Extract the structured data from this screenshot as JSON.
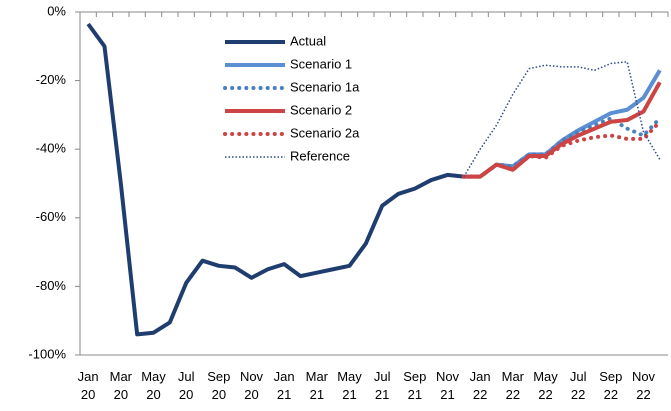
{
  "chart_data": {
    "type": "line",
    "categories": [
      "Jan 20",
      null,
      "Mar 20",
      null,
      "May 20",
      null,
      "Jul 20",
      null,
      "Sep 20",
      null,
      "Nov 20",
      null,
      "Jan 21",
      null,
      "Mar 21",
      null,
      "May 21",
      null,
      "Jul 21",
      null,
      "Sep 21",
      null,
      "Nov 21",
      null,
      "Jan 22",
      null,
      "Mar 22",
      null,
      "May 22",
      null,
      "Jul 22",
      null,
      "Sep 22",
      null,
      "Nov 22",
      null
    ],
    "series": [
      {
        "name": "Actual",
        "color": "#1f3d6e",
        "dash": "solid",
        "values": [
          -3.5,
          -10,
          -50,
          -94,
          -93.5,
          -90.5,
          -79,
          -72.5,
          -74,
          -74.5,
          -77.5,
          -75,
          -73.5,
          -77,
          -76,
          -75,
          -74,
          -67.5,
          -56.5,
          -53,
          -51.5,
          -49,
          -47.5,
          -48,
          null,
          null,
          null,
          null,
          null,
          null,
          null,
          null,
          null,
          null,
          null,
          null
        ]
      },
      {
        "name": "Scenario 1",
        "color": "#5b8fd4",
        "dash": "solid",
        "values": [
          null,
          null,
          null,
          null,
          null,
          null,
          null,
          null,
          null,
          null,
          null,
          null,
          null,
          null,
          null,
          null,
          null,
          null,
          null,
          null,
          null,
          null,
          null,
          -48,
          -48,
          -44.5,
          -45,
          -41.5,
          -41.5,
          -37.5,
          -34.5,
          -32,
          -29.5,
          -28.5,
          -25,
          -17
        ]
      },
      {
        "name": "Scenario 1a",
        "color": "#4a7fc0",
        "dash": "dotted",
        "values": [
          null,
          null,
          null,
          null,
          null,
          null,
          null,
          null,
          null,
          null,
          null,
          null,
          null,
          null,
          null,
          null,
          null,
          null,
          null,
          null,
          null,
          null,
          null,
          -48,
          -48,
          -44.5,
          -45,
          -41.5,
          -41.5,
          -37.5,
          -35,
          -33,
          -31,
          -34,
          -36,
          -31
        ]
      },
      {
        "name": "Scenario 2",
        "color": "#cc4444",
        "dash": "solid",
        "values": [
          null,
          null,
          null,
          null,
          null,
          null,
          null,
          null,
          null,
          null,
          null,
          null,
          null,
          null,
          null,
          null,
          null,
          null,
          null,
          null,
          null,
          null,
          null,
          -48,
          -48,
          -44.5,
          -46,
          -42,
          -42,
          -38.5,
          -36,
          -34,
          -32,
          -31.5,
          -29,
          -20.5
        ]
      },
      {
        "name": "Scenario 2a",
        "color": "#cc4444",
        "dash": "dotted",
        "values": [
          null,
          null,
          null,
          null,
          null,
          null,
          null,
          null,
          null,
          null,
          null,
          null,
          null,
          null,
          null,
          null,
          null,
          null,
          null,
          null,
          null,
          null,
          null,
          -48,
          -48,
          -44.5,
          -46,
          -42,
          -42.5,
          -39,
          -37.5,
          -36.5,
          -36,
          -37,
          -37,
          -32
        ]
      },
      {
        "name": "Reference",
        "color": "#2e4a8a",
        "dash": "fine-dotted",
        "values": [
          null,
          null,
          null,
          null,
          null,
          null,
          null,
          null,
          null,
          null,
          null,
          null,
          null,
          null,
          null,
          null,
          null,
          null,
          null,
          null,
          null,
          null,
          null,
          -48,
          -40,
          -33,
          -24,
          -16.5,
          -15.5,
          -16,
          -16,
          -17,
          -15,
          -14.5,
          -35,
          -43
        ]
      }
    ],
    "ylim": [
      -100,
      0
    ],
    "yticks": [
      {
        "value": 0,
        "label": "0%"
      },
      {
        "value": -20,
        "label": "-20%"
      },
      {
        "value": -40,
        "label": "-40%"
      },
      {
        "value": -60,
        "label": "-60%"
      },
      {
        "value": -80,
        "label": "-80%"
      },
      {
        "value": -100,
        "label": "-100%"
      }
    ],
    "legend": "upper center"
  }
}
